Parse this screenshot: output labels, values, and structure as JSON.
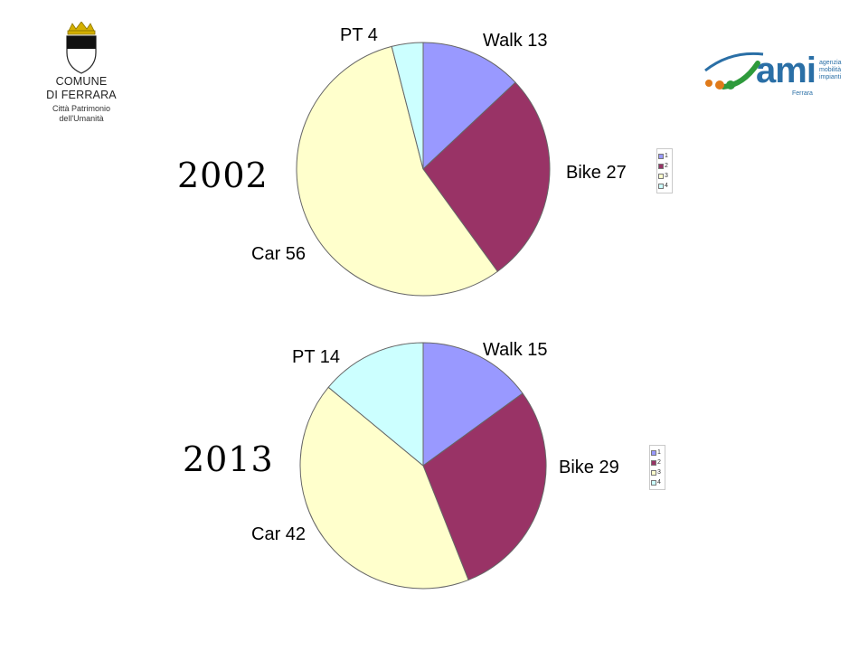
{
  "logos": {
    "left": {
      "line1": "COMUNE",
      "line2": "DI FERRARA",
      "line3": "Città Patrimonio",
      "line4": "dell'Umanità"
    },
    "right": {
      "word": "ami",
      "tagline": [
        "agenzia",
        "mobilità",
        "impianti"
      ],
      "city": "Ferrara"
    }
  },
  "colors": {
    "walk": "#9999ff",
    "bike": "#993366",
    "car": "#ffffcc",
    "pt": "#ccffff",
    "stroke": "#666666"
  },
  "chart_data": [
    {
      "type": "pie",
      "year_label": "2002",
      "slices": [
        {
          "label": "Walk 13",
          "value": 13,
          "color": "#9999ff"
        },
        {
          "label": "Bike 27",
          "value": 27,
          "color": "#993366"
        },
        {
          "label": "Car 56",
          "value": 56,
          "color": "#ffffcc"
        },
        {
          "label": "PT 4",
          "value": 4,
          "color": "#ccffff"
        }
      ],
      "legend": [
        "1",
        "2",
        "3",
        "4"
      ]
    },
    {
      "type": "pie",
      "year_label": "2013",
      "slices": [
        {
          "label": "Walk 15",
          "value": 15,
          "color": "#9999ff"
        },
        {
          "label": "Bike 29",
          "value": 29,
          "color": "#993366"
        },
        {
          "label": "Car 42",
          "value": 42,
          "color": "#ffffcc"
        },
        {
          "label": "PT 14",
          "value": 14,
          "color": "#ccffff"
        }
      ],
      "legend": [
        "1",
        "2",
        "3",
        "4"
      ]
    }
  ]
}
